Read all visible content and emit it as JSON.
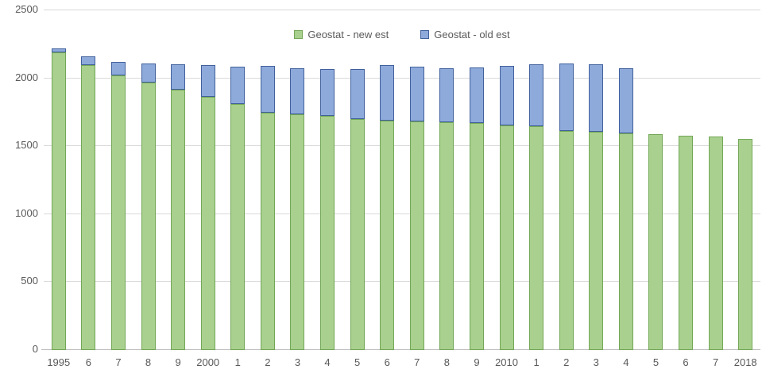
{
  "colors": {
    "background": "#ffffff",
    "text": "#595959",
    "gridline": "#d9d9d9",
    "axis_line": "#bfbfbf",
    "new_est_fill": "#a9d08e",
    "new_est_border": "#73a757",
    "old_est_fill": "#8eaadb",
    "old_est_border": "#41619c"
  },
  "chart_data": {
    "type": "bar",
    "subtype": "overlapped-columns",
    "title": "",
    "xlabel": "",
    "ylabel": "",
    "categories": [
      "1995",
      "6",
      "7",
      "8",
      "9",
      "2000",
      "1",
      "2",
      "3",
      "4",
      "5",
      "6",
      "7",
      "8",
      "9",
      "2010",
      "1",
      "2",
      "3",
      "4",
      "5",
      "6",
      "7",
      "2018"
    ],
    "series": [
      {
        "name": "Geostat - new est",
        "color": "#a9d08e",
        "border": "#73a757",
        "values": [
          2190,
          2095,
          2020,
          1970,
          1915,
          1865,
          1810,
          1745,
          1735,
          1725,
          1700,
          1690,
          1685,
          1675,
          1670,
          1655,
          1645,
          1615,
          1605,
          1595,
          1590,
          1575,
          1570,
          1555
        ]
      },
      {
        "name": "Geostat - old est",
        "color": "#8eaadb",
        "border": "#41619c",
        "values": [
          2220,
          2160,
          2120,
          2110,
          2105,
          2100,
          2085,
          2090,
          2075,
          2070,
          2065,
          2095,
          2085,
          2075,
          2080,
          2090,
          2105,
          2110,
          2105,
          2075,
          null,
          null,
          null,
          null
        ]
      }
    ],
    "ylim": [
      0,
      2500
    ],
    "ytick_interval": 500,
    "yticks": [
      0,
      500,
      1000,
      1500,
      2000,
      2500
    ],
    "grid": "horizontal",
    "legend_position": "top-center",
    "note": "old est series drawn behind new est; visible blue segment = old est minus new est"
  }
}
